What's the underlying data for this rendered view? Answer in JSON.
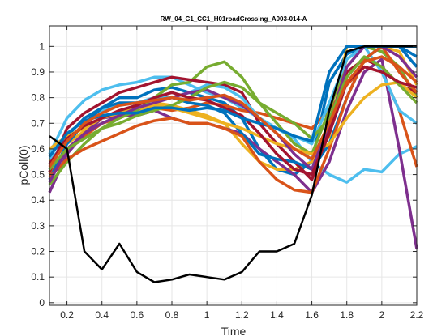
{
  "chart_data": {
    "type": "line",
    "title": "RW_04_C1_CC1_H01roadCrossing_A003-014-A",
    "xlabel": "Time",
    "ylabel": "pColl(0)",
    "xlim": [
      0.1,
      2.2
    ],
    "ylim": [
      -0.01,
      1.08
    ],
    "xticks": [
      "0.2",
      "0.4",
      "0.6",
      "0.8",
      "1",
      "1.2",
      "1.4",
      "1.6",
      "1.8",
      "2",
      "2.2"
    ],
    "yticks": [
      "0",
      "0.1",
      "0.2",
      "0.3",
      "0.4",
      "0.5",
      "0.6",
      "0.7",
      "0.8",
      "0.9",
      "1"
    ],
    "grid": true,
    "x": [
      0.1,
      0.2,
      0.3,
      0.4,
      0.5,
      0.6,
      0.7,
      0.8,
      0.9,
      1.0,
      1.1,
      1.2,
      1.3,
      1.4,
      1.5,
      1.6,
      1.7,
      1.8,
      1.9,
      2.0,
      2.1,
      2.2
    ],
    "series": [
      {
        "color": "#000000",
        "values": [
          0.65,
          0.6,
          0.2,
          0.13,
          0.23,
          0.12,
          0.08,
          0.09,
          0.11,
          0.1,
          0.09,
          0.12,
          0.2,
          0.2,
          0.23,
          0.42,
          0.75,
          0.98,
          1.0,
          1.0,
          1.0,
          1.0
        ]
      },
      {
        "color": "#4DBEEE",
        "values": [
          0.58,
          0.72,
          0.79,
          0.83,
          0.85,
          0.86,
          0.88,
          0.88,
          0.85,
          0.82,
          0.8,
          0.76,
          0.72,
          0.68,
          0.64,
          0.55,
          0.5,
          0.47,
          0.52,
          0.51,
          0.58,
          0.61
        ]
      },
      {
        "color": "#0072BD",
        "values": [
          0.52,
          0.65,
          0.72,
          0.76,
          0.8,
          0.8,
          0.83,
          0.84,
          0.82,
          0.8,
          0.78,
          0.72,
          0.6,
          0.52,
          0.5,
          0.55,
          0.86,
          0.97,
          1.0,
          1.0,
          1.0,
          1.0
        ]
      },
      {
        "color": "#D95319",
        "values": [
          0.5,
          0.59,
          0.65,
          0.7,
          0.72,
          0.75,
          0.76,
          0.75,
          0.76,
          0.78,
          0.77,
          0.75,
          0.74,
          0.72,
          0.7,
          0.68,
          0.75,
          0.85,
          0.92,
          0.9,
          0.75,
          0.53
        ]
      },
      {
        "color": "#EDB120",
        "values": [
          0.55,
          0.62,
          0.67,
          0.7,
          0.73,
          0.74,
          0.78,
          0.77,
          0.75,
          0.73,
          0.7,
          0.62,
          0.55,
          0.52,
          0.52,
          0.55,
          0.65,
          1.0,
          1.0,
          1.0,
          0.98,
          0.85
        ]
      },
      {
        "color": "#7E2F8E",
        "values": [
          0.43,
          0.58,
          0.66,
          0.72,
          0.73,
          0.73,
          0.75,
          0.72,
          0.7,
          0.7,
          0.68,
          0.66,
          0.6,
          0.55,
          0.5,
          0.43,
          0.55,
          0.75,
          0.9,
          0.95,
          0.6,
          0.21
        ]
      },
      {
        "color": "#77AC30",
        "values": [
          0.46,
          0.55,
          0.62,
          0.68,
          0.72,
          0.75,
          0.8,
          0.85,
          0.86,
          0.92,
          0.94,
          0.88,
          0.78,
          0.7,
          0.62,
          0.58,
          0.75,
          0.95,
          1.0,
          0.98,
          0.92,
          0.8
        ]
      },
      {
        "color": "#A2142F",
        "values": [
          0.51,
          0.68,
          0.74,
          0.78,
          0.82,
          0.84,
          0.86,
          0.88,
          0.87,
          0.86,
          0.85,
          0.82,
          0.7,
          0.62,
          0.55,
          0.48,
          0.68,
          0.9,
          0.95,
          0.92,
          0.85,
          0.82
        ]
      },
      {
        "color": "#4DBEEE",
        "values": [
          0.56,
          0.62,
          0.7,
          0.75,
          0.77,
          0.78,
          0.8,
          0.8,
          0.82,
          0.85,
          0.84,
          0.8,
          0.72,
          0.68,
          0.65,
          0.62,
          0.78,
          0.95,
          1.0,
          0.9,
          0.75,
          0.7
        ]
      },
      {
        "color": "#0072BD",
        "values": [
          0.48,
          0.62,
          0.7,
          0.76,
          0.78,
          0.78,
          0.79,
          0.8,
          0.78,
          0.77,
          0.74,
          0.66,
          0.58,
          0.56,
          0.55,
          0.52,
          0.62,
          0.8,
          0.95,
          1.0,
          1.0,
          0.92
        ]
      },
      {
        "color": "#D95319",
        "values": [
          0.49,
          0.56,
          0.6,
          0.63,
          0.66,
          0.69,
          0.71,
          0.72,
          0.7,
          0.7,
          0.68,
          0.65,
          0.55,
          0.48,
          0.44,
          0.43,
          0.6,
          0.8,
          0.95,
          1.0,
          0.9,
          0.82
        ]
      },
      {
        "color": "#EDB120",
        "values": [
          0.6,
          0.65,
          0.68,
          0.72,
          0.74,
          0.76,
          0.77,
          0.76,
          0.74,
          0.72,
          0.7,
          0.68,
          0.65,
          0.62,
          0.6,
          0.58,
          0.62,
          0.72,
          0.8,
          0.85,
          0.86,
          0.8
        ]
      },
      {
        "color": "#7E2F8E",
        "values": [
          0.47,
          0.6,
          0.66,
          0.7,
          0.73,
          0.76,
          0.78,
          0.8,
          0.82,
          0.83,
          0.8,
          0.77,
          0.72,
          0.66,
          0.58,
          0.52,
          0.7,
          0.92,
          1.0,
          1.0,
          0.96,
          0.88
        ]
      },
      {
        "color": "#77AC30",
        "values": [
          0.52,
          0.6,
          0.64,
          0.68,
          0.7,
          0.73,
          0.75,
          0.77,
          0.8,
          0.84,
          0.86,
          0.84,
          0.78,
          0.74,
          0.7,
          0.64,
          0.72,
          0.88,
          0.96,
          0.92,
          0.85,
          0.78
        ]
      },
      {
        "color": "#A2142F",
        "values": [
          0.54,
          0.64,
          0.69,
          0.72,
          0.75,
          0.77,
          0.8,
          0.82,
          0.8,
          0.79,
          0.76,
          0.73,
          0.66,
          0.58,
          0.52,
          0.5,
          0.66,
          0.86,
          0.92,
          0.9,
          0.86,
          0.84
        ]
      },
      {
        "color": "#0072BD",
        "values": [
          0.57,
          0.66,
          0.71,
          0.73,
          0.74,
          0.74,
          0.76,
          0.76,
          0.75,
          0.76,
          0.75,
          0.72,
          0.7,
          0.68,
          0.65,
          0.63,
          0.9,
          1.0,
          1.0,
          1.0,
          1.0,
          0.96
        ]
      },
      {
        "color": "#D95319",
        "values": [
          0.53,
          0.63,
          0.7,
          0.74,
          0.77,
          0.78,
          0.79,
          0.8,
          0.79,
          0.8,
          0.81,
          0.78,
          0.72,
          0.66,
          0.6,
          0.56,
          0.7,
          0.86,
          0.94,
          0.96,
          0.92,
          0.86
        ]
      }
    ]
  }
}
